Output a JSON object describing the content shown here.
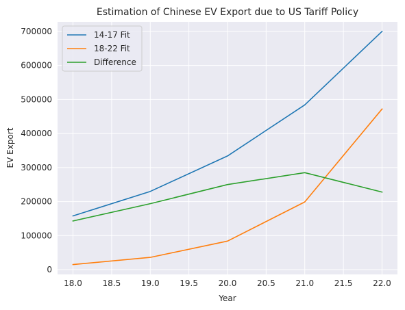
{
  "chart_data": {
    "type": "line",
    "title": "Estimation of Chinese EV Export due to US Tariff Policy",
    "xlabel": "Year",
    "ylabel": "EV Export",
    "x": [
      18.0,
      19.0,
      20.0,
      21.0,
      22.0
    ],
    "xlim": [
      17.8,
      22.2
    ],
    "ylim": [
      -14000,
      728000
    ],
    "xticks": [
      "18.0",
      "18.5",
      "19.0",
      "19.5",
      "20.0",
      "20.5",
      "21.0",
      "21.5",
      "22.0"
    ],
    "xtick_values": [
      18.0,
      18.5,
      19.0,
      19.5,
      20.0,
      20.5,
      21.0,
      21.5,
      22.0
    ],
    "yticks": [
      "0",
      "100000",
      "200000",
      "300000",
      "400000",
      "500000",
      "600000",
      "700000"
    ],
    "ytick_values": [
      0,
      100000,
      200000,
      300000,
      400000,
      500000,
      600000,
      700000
    ],
    "grid": true,
    "legend_position": "top-left",
    "background": "#eaeaf2",
    "series": [
      {
        "name": "14-17 Fit",
        "color": "#1f77b4",
        "values": [
          158000,
          230000,
          334000,
          484000,
          700000
        ]
      },
      {
        "name": "18-22 Fit",
        "color": "#ff7f0e",
        "values": [
          15000,
          36000,
          84000,
          199000,
          472000
        ]
      },
      {
        "name": "Difference",
        "color": "#2ca02c",
        "values": [
          143000,
          194000,
          250000,
          285000,
          228000
        ]
      }
    ]
  }
}
